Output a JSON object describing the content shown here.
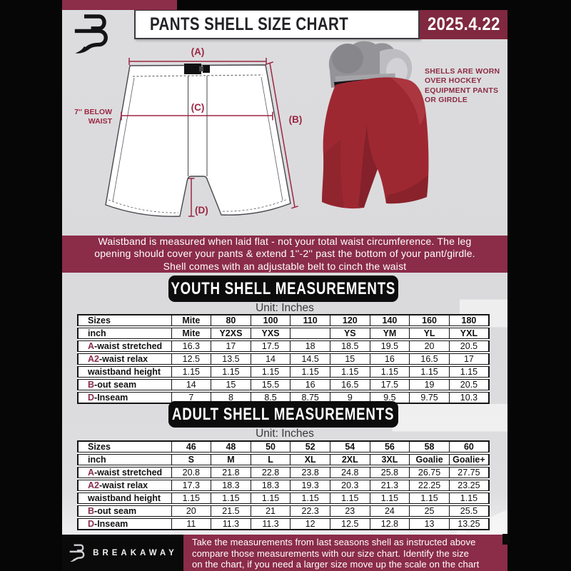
{
  "header": {
    "title": "PANTS SHELL SIZE CHART",
    "date": "2025.4.22"
  },
  "colors": {
    "maroon": "#8b2c49",
    "maroon_dark": "#80283f",
    "accent_line": "#9b2743",
    "page_gray": "#dcdcde",
    "banner_black": "#0c0c0d",
    "shell_red": "#9e2832"
  },
  "diagram": {
    "label_a": "(A)",
    "label_b": "(B)",
    "label_c": "(C)",
    "label_d": "(D)",
    "waist_note": [
      "7'' BELOW",
      "WAIST"
    ]
  },
  "photo_note": {
    "lines": [
      "SHELLS ARE WORN",
      "OVER HOCKEY",
      "EQUIPMENT PANTS",
      "OR GIRDLE"
    ]
  },
  "info_banner": {
    "lines": [
      "Waistband is measured when laid flat - not your total waist circumference. The leg",
      "opening should cover your pants & extend 1''-2'' past the bottom of your pant/girdle.",
      "Shell comes with an adjustable belt to cinch the waist"
    ]
  },
  "youth": {
    "heading": "YOUTH SHELL MEASUREMENTS",
    "unit": "Unit: Inches",
    "table": {
      "header_rows": [
        {
          "label": "Sizes",
          "values": [
            "Mite",
            "80",
            "100",
            "110",
            "120",
            "140",
            "160",
            "180"
          ]
        },
        {
          "label": "inch",
          "values": [
            "Mite",
            "Y2XS",
            "YXS",
            "",
            "YS",
            "YM",
            "YL",
            "YXL"
          ]
        }
      ],
      "rows": [
        {
          "prefix": "A",
          "label": "-waist stretched",
          "values": [
            "16.3",
            "17",
            "17.5",
            "18",
            "18.5",
            "19.5",
            "20",
            "20.5"
          ]
        },
        {
          "prefix": "A2",
          "label": "-waist relax",
          "values": [
            "12.5",
            "13.5",
            "14",
            "14.5",
            "15",
            "16",
            "16.5",
            "17"
          ]
        },
        {
          "prefix": "",
          "label": "waistband height",
          "values": [
            "1.15",
            "1.15",
            "1.15",
            "1.15",
            "1.15",
            "1.15",
            "1.15",
            "1.15"
          ]
        },
        {
          "prefix": "B",
          "label": "-out seam",
          "values": [
            "14",
            "15",
            "15.5",
            "16",
            "16.5",
            "17.5",
            "19",
            "20.5"
          ]
        },
        {
          "prefix": "D",
          "label": "-Inseam",
          "values": [
            "7",
            "8",
            "8.5",
            "8.75",
            "9",
            "9.5",
            "9.75",
            "10.3"
          ]
        }
      ]
    }
  },
  "adult": {
    "heading": "ADULT SHELL MEASUREMENTS",
    "unit": "Unit: Inches",
    "table": {
      "header_rows": [
        {
          "label": "Sizes",
          "values": [
            "46",
            "48",
            "50",
            "52",
            "54",
            "56",
            "58",
            "60"
          ]
        },
        {
          "label": "inch",
          "values": [
            "S",
            "M",
            "L",
            "XL",
            "2XL",
            "3XL",
            "Goalie",
            "Goalie+"
          ]
        }
      ],
      "rows": [
        {
          "prefix": "A",
          "label": "-waist stretched",
          "values": [
            "20.8",
            "21.8",
            "22.8",
            "23.8",
            "24.8",
            "25.8",
            "26.75",
            "27.75"
          ]
        },
        {
          "prefix": "A2",
          "label": "-waist relax",
          "values": [
            "17.3",
            "18.3",
            "18.3",
            "19.3",
            "20.3",
            "21.3",
            "22.25",
            "23.25"
          ]
        },
        {
          "prefix": "",
          "label": "waistband height",
          "values": [
            "1.15",
            "1.15",
            "1.15",
            "1.15",
            "1.15",
            "1.15",
            "1.15",
            "1.15"
          ]
        },
        {
          "prefix": "B",
          "label": "-out seam",
          "values": [
            "20",
            "21.5",
            "21",
            "22.3",
            "23",
            "24",
            "25",
            "25.5"
          ]
        },
        {
          "prefix": "D",
          "label": "-Inseam",
          "values": [
            "11",
            "11.3",
            "11.3",
            "12",
            "12.5",
            "12.8",
            "13",
            "13.25"
          ]
        }
      ]
    }
  },
  "footer": {
    "brand": "BREAKAWAY",
    "lines": [
      "Take the measurements from last seasons shell as instructed above",
      "compare those measurements  with our size chart. Identify the size",
      "on the chart, if you need a larger size move up the scale on the chart"
    ]
  }
}
